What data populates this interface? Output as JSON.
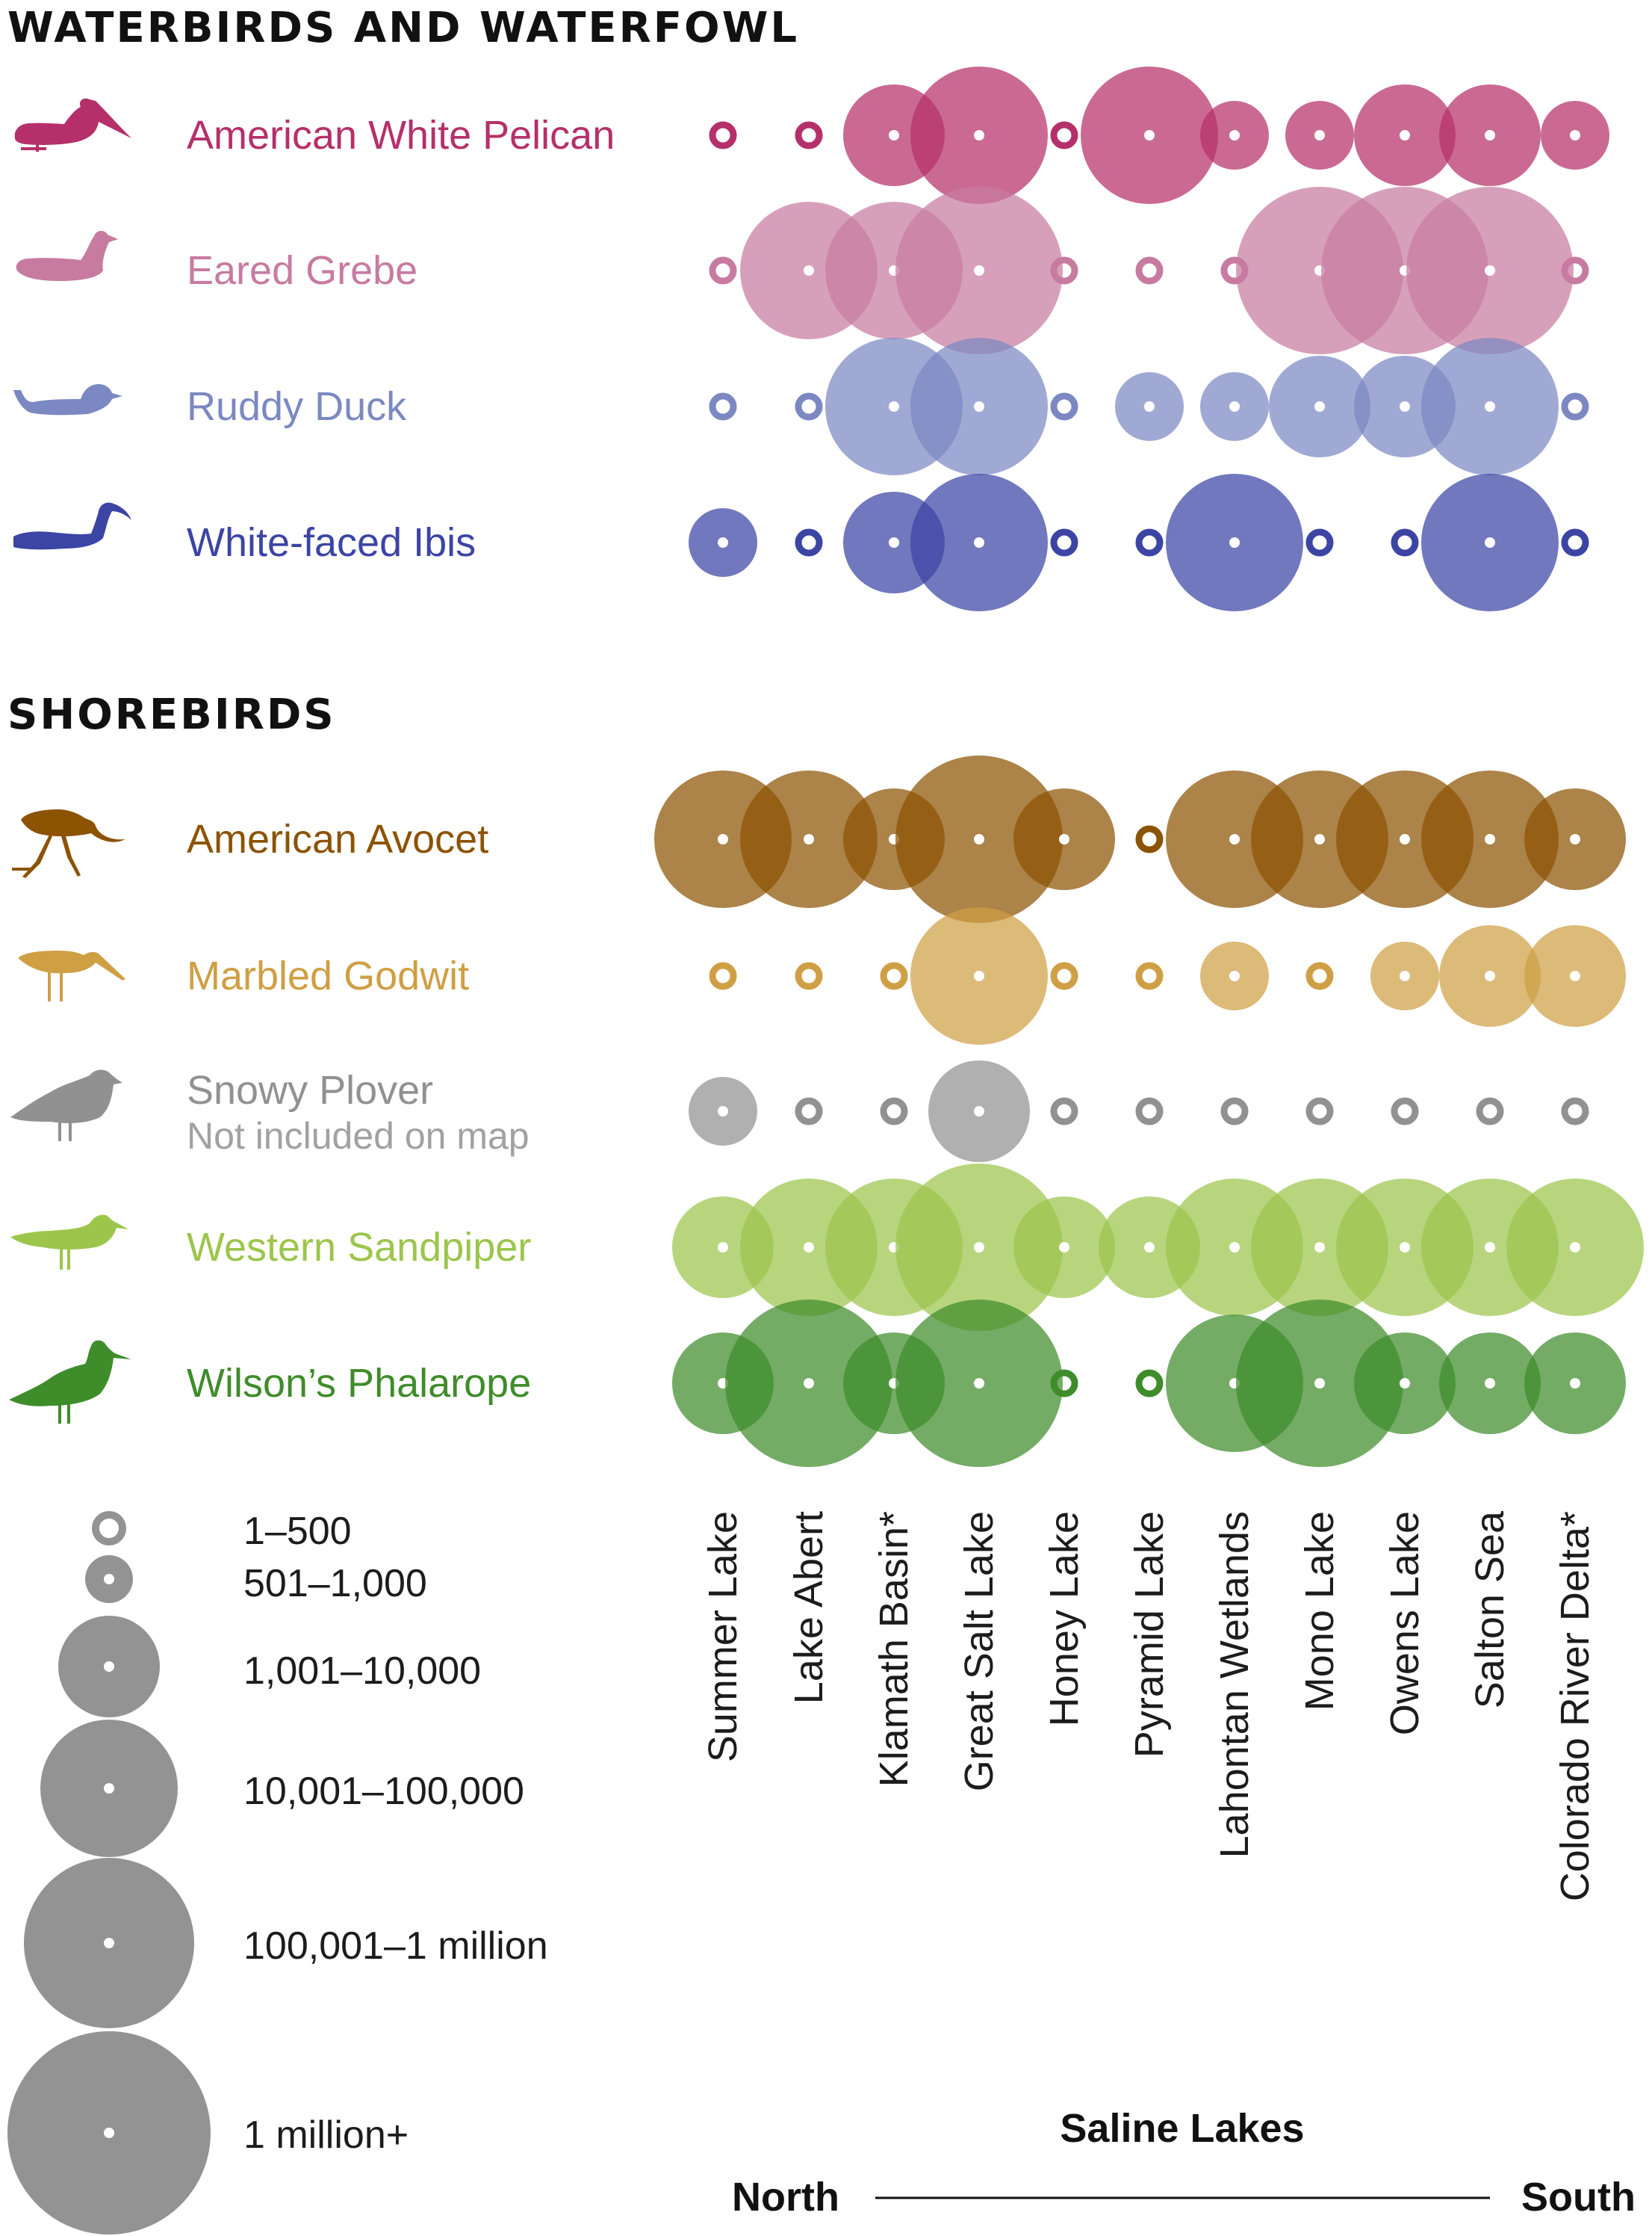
{
  "chart_data": {
    "type": "bubble-matrix",
    "sections": [
      {
        "title": "WATERBIRDS AND WATERFOWL",
        "species": [
          {
            "name": "American White Pelican",
            "note": "",
            "color": "#b5306a",
            "icon": "pelican-icon",
            "values": [
              1,
              1,
              4,
              5,
              1,
              5,
              3,
              3,
              4,
              4,
              3
            ]
          },
          {
            "name": "Eared Grebe",
            "note": "",
            "color": "#c77ba0",
            "icon": "grebe-icon",
            "values": [
              1,
              5,
              5,
              6,
              1,
              1,
              1,
              6,
              6,
              6,
              1
            ]
          },
          {
            "name": "Ruddy Duck",
            "note": "",
            "color": "#7b88c2",
            "icon": "duck-icon",
            "values": [
              1,
              1,
              5,
              5,
              1,
              3,
              3,
              4,
              4,
              5,
              1
            ]
          },
          {
            "name": "White-faced Ibis",
            "note": "",
            "color": "#3c44a4",
            "icon": "ibis-icon",
            "values": [
              3,
              1,
              4,
              5,
              1,
              1,
              5,
              1,
              1,
              5,
              1
            ]
          }
        ]
      },
      {
        "title": "SHOREBIRDS",
        "species": [
          {
            "name": "American Avocet",
            "note": "",
            "color": "#8c5303",
            "icon": "avocet-icon",
            "values": [
              5,
              5,
              4,
              6,
              4,
              1,
              5,
              5,
              5,
              5,
              4
            ]
          },
          {
            "name": "Marbled Godwit",
            "note": "",
            "color": "#cf9f44",
            "icon": "godwit-icon",
            "values": [
              1,
              1,
              1,
              5,
              1,
              1,
              3,
              1,
              3,
              4,
              4
            ]
          },
          {
            "name": "Snowy Plover",
            "note": "Not included on map",
            "color": "#919191",
            "icon": "plover-icon",
            "values": [
              3,
              1,
              1,
              4,
              1,
              1,
              1,
              1,
              1,
              1,
              1
            ]
          },
          {
            "name": "Western Sandpiper",
            "note": "",
            "color": "#9cc54c",
            "icon": "sandpiper-icon",
            "values": [
              4,
              5,
              5,
              6,
              4,
              4,
              5,
              5,
              5,
              5,
              5
            ]
          },
          {
            "name": "Wilson’s Phalarope",
            "note": "",
            "color": "#3f8c2b",
            "icon": "phalarope-icon",
            "values": [
              4,
              6,
              4,
              6,
              1,
              1,
              5,
              6,
              4,
              4,
              4
            ]
          }
        ]
      }
    ],
    "lakes": [
      "Summer Lake",
      "Lake Abert",
      "Klamath Basin*",
      "Great Salt Lake",
      "Honey Lake",
      "Pyramid Lake",
      "Lahontan Wetlands",
      "Mono Lake",
      "Owens Lake",
      "Salton Sea",
      "Colorado River Delta*"
    ],
    "size_legend": [
      "1–500",
      "501–1,000",
      "1,001–10,000",
      "10,001–100,000",
      "100,001–1 million",
      "1 million+"
    ],
    "legend_color": "#939393",
    "x_axis_title": "Saline Lakes",
    "axis_start": "North",
    "axis_end": "South"
  }
}
